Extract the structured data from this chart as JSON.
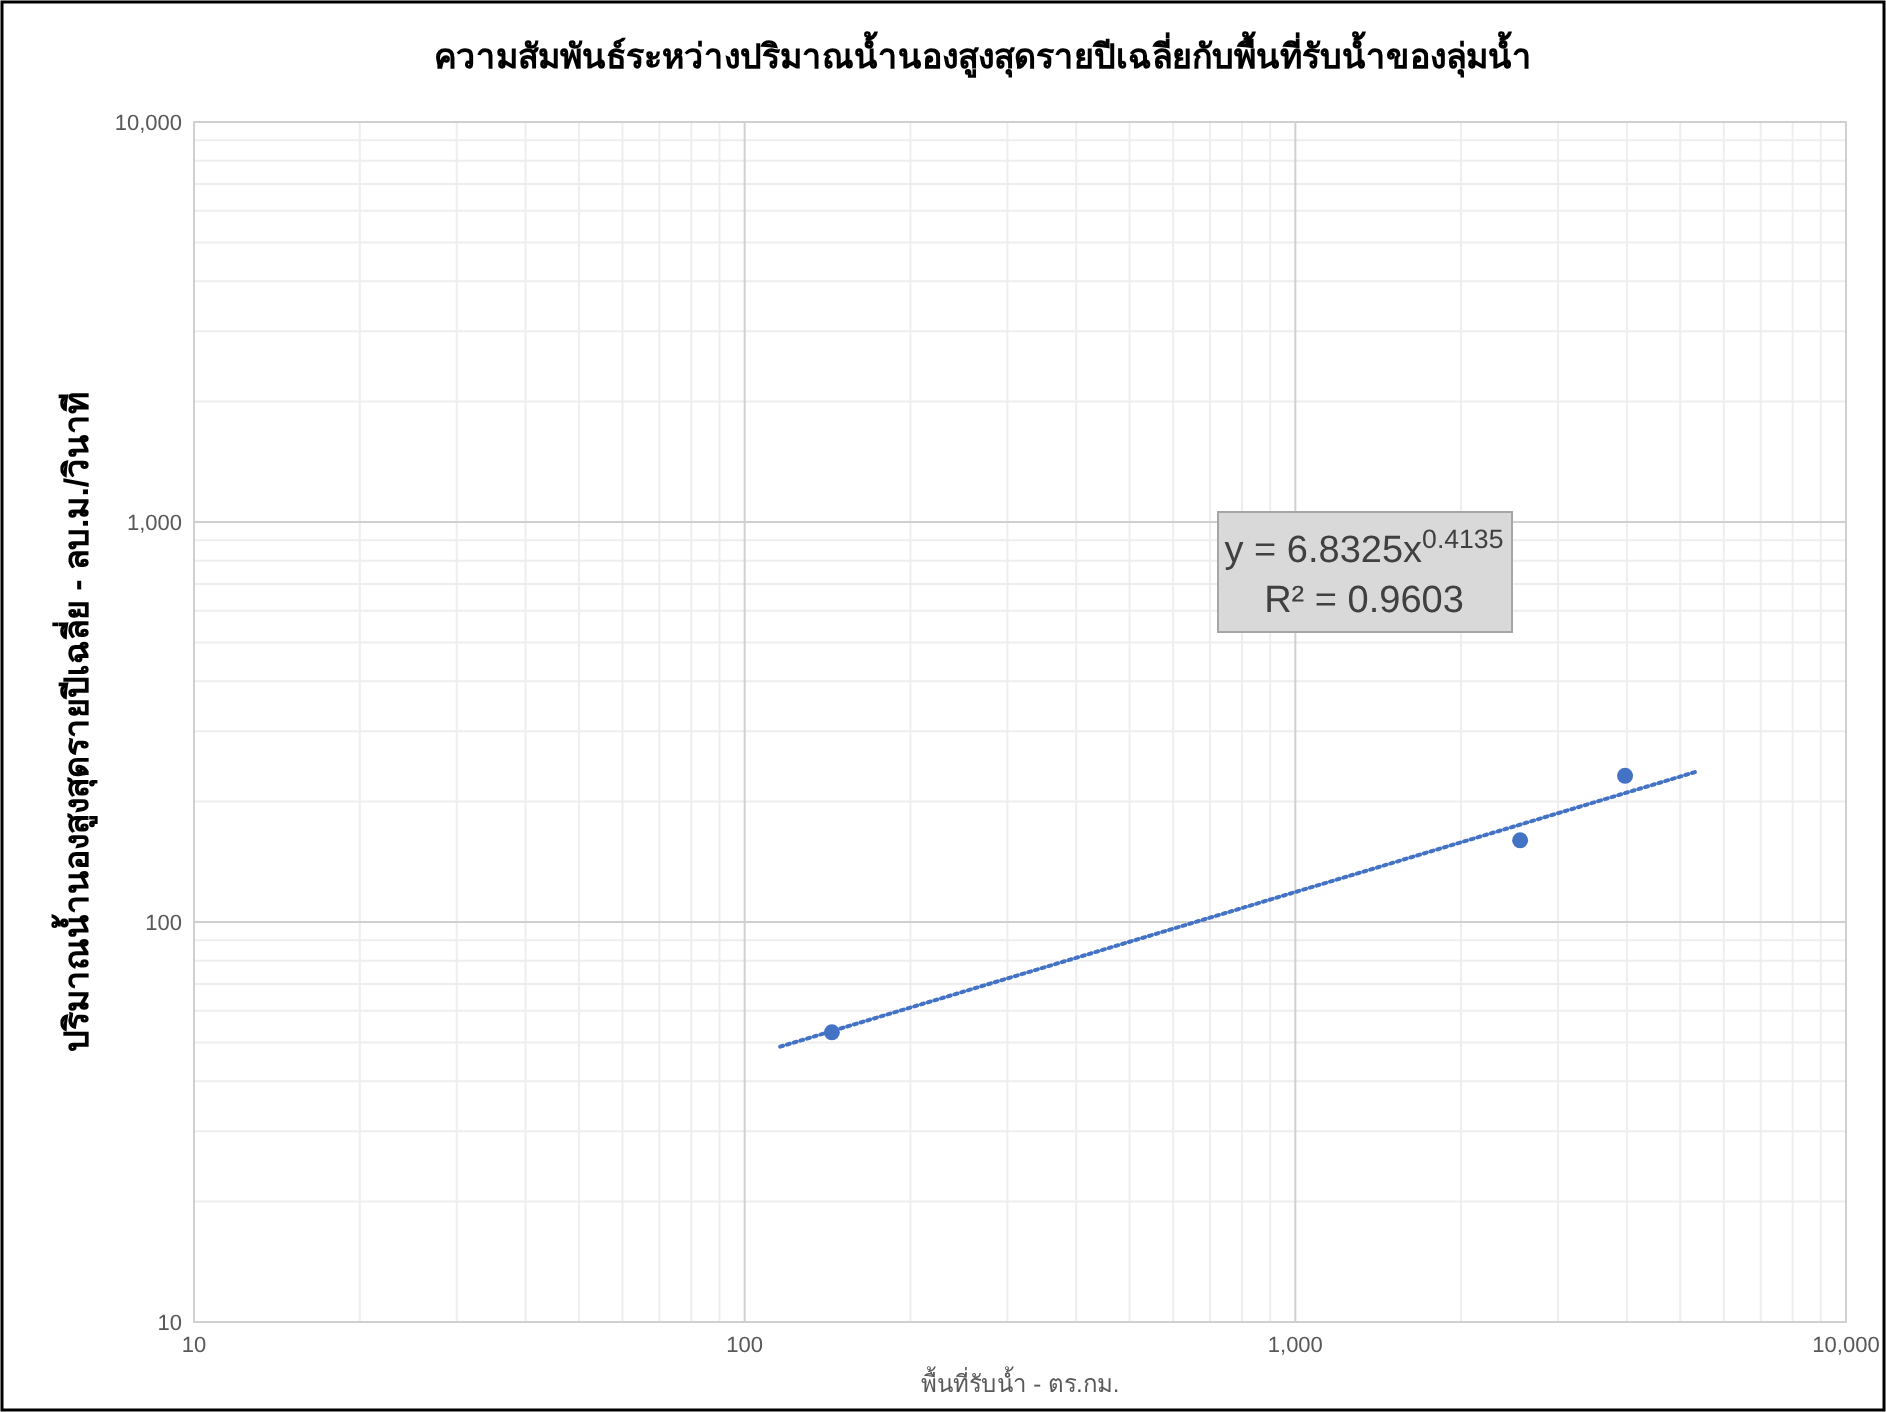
{
  "chart_data": {
    "type": "scatter",
    "title": "ความสัมพันธ์ระหว่างปริมาณน้ำนองสูงสุดรายปีเฉลี่ยกับพื้นที่รับน้ำของลุ่มน้ำ",
    "xlabel": "พื้นที่รับน้ำ - ตร.กม.",
    "ylabel": "ปริมาณน้ำนองสูงสุดรายปีเฉลี่ย - ลบ.ม./วินาที",
    "log": "xy",
    "grid": true,
    "xlim": [
      10,
      10000
    ],
    "ylim": [
      10,
      10000
    ],
    "xticks": [
      10,
      100,
      {
        "value": 1000,
        "label": "1,000"
      },
      {
        "value": 10000,
        "label": "10,000"
      }
    ],
    "yticks": [
      10,
      100,
      {
        "value": 1000,
        "label": "1,000"
      },
      {
        "value": 10000,
        "label": "10,000"
      }
    ],
    "series": [
      {
        "color": "#4472c4",
        "marker": "circle",
        "x": [
          144,
          2560,
          3970
        ],
        "values": [
          53,
          160,
          232
        ]
      },
      {
        "type": "line",
        "color": "#4472c4",
        "line_style": "dotted",
        "marker": "none",
        "x": [
          116,
          5320
        ],
        "values": [
          48.8,
          237
        ]
      }
    ],
    "annotations": [
      "y = 6.8325x$^{0.4135}$",
      "R² = 0.9603"
    ]
  }
}
